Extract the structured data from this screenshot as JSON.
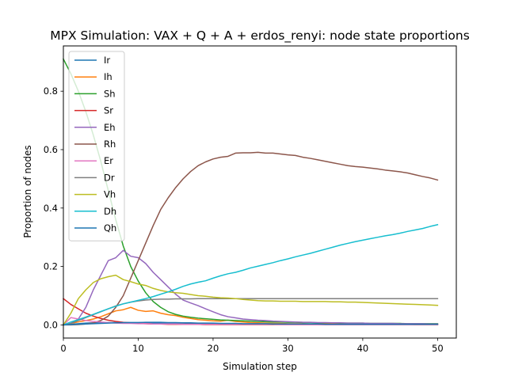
{
  "chart_data": {
    "type": "line",
    "title": "MPX Simulation: VAX + Q + A + erdos_renyi: node state proportions",
    "xlabel": "Simulation step",
    "ylabel": "Proportion of nodes",
    "xlim": [
      0,
      52.5
    ],
    "ylim": [
      -0.045,
      0.955
    ],
    "xticks": [
      0,
      10,
      20,
      30,
      40,
      50
    ],
    "xtick_labels": [
      "0",
      "10",
      "20",
      "30",
      "40",
      "50"
    ],
    "yticks": [
      0.0,
      0.2,
      0.4,
      0.6,
      0.8
    ],
    "ytick_labels": [
      "0.0",
      "0.2",
      "0.4",
      "0.6",
      "0.8"
    ],
    "grid": false,
    "legend_position": "upper-left",
    "x": [
      0,
      1,
      2,
      3,
      4,
      5,
      6,
      7,
      8,
      9,
      10,
      11,
      12,
      13,
      14,
      15,
      16,
      17,
      18,
      19,
      20,
      21,
      22,
      23,
      24,
      25,
      26,
      27,
      28,
      29,
      30,
      31,
      32,
      33,
      34,
      35,
      36,
      37,
      38,
      39,
      40,
      41,
      42,
      43,
      44,
      45,
      46,
      47,
      48,
      49,
      50
    ],
    "series": [
      {
        "name": "Ir",
        "color": "#1f77b4",
        "values": [
          0,
          0.002,
          0.004,
          0.006,
          0.007,
          0.008,
          0.008,
          0.008,
          0.008,
          0.008,
          0.008,
          0.008,
          0.007,
          0.007,
          0.006,
          0.006,
          0.006,
          0.005,
          0.005,
          0.005,
          0.004,
          0.004,
          0.004,
          0.004,
          0.003,
          0.003,
          0.003,
          0.003,
          0.003,
          0.003,
          0.003,
          0.003,
          0.003,
          0.003,
          0.002,
          0.002,
          0.002,
          0.002,
          0.002,
          0.002,
          0.002,
          0.002,
          0.002,
          0.002,
          0.002,
          0.002,
          0.002,
          0.002,
          0.002,
          0.002,
          0.002
        ]
      },
      {
        "name": "Ih",
        "color": "#ff7f0e",
        "values": [
          0,
          0.005,
          0.01,
          0.015,
          0.02,
          0.028,
          0.038,
          0.048,
          0.052,
          0.06,
          0.05,
          0.046,
          0.048,
          0.04,
          0.035,
          0.032,
          0.026,
          0.022,
          0.018,
          0.016,
          0.014,
          0.013,
          0.016,
          0.012,
          0.01,
          0.008,
          0.007,
          0.006,
          0.005,
          0.005,
          0.004,
          0.004,
          0.004,
          0.003,
          0.003,
          0.003,
          0.003,
          0.003,
          0.002,
          0.002,
          0.002,
          0.002,
          0.002,
          0.002,
          0.002,
          0.002,
          0.002,
          0.001,
          0.001,
          0.001,
          0.001
        ]
      },
      {
        "name": "Sh",
        "color": "#2ca02c",
        "values": [
          0.91,
          0.86,
          0.8,
          0.73,
          0.65,
          0.56,
          0.46,
          0.36,
          0.27,
          0.2,
          0.15,
          0.11,
          0.08,
          0.06,
          0.045,
          0.036,
          0.03,
          0.026,
          0.023,
          0.021,
          0.019,
          0.017,
          0.016,
          0.015,
          0.014,
          0.013,
          0.012,
          0.011,
          0.01,
          0.01,
          0.009,
          0.009,
          0.008,
          0.008,
          0.007,
          0.007,
          0.007,
          0.006,
          0.006,
          0.006,
          0.006,
          0.005,
          0.005,
          0.005,
          0.005,
          0.005,
          0.004,
          0.004,
          0.004,
          0.004,
          0.004
        ]
      },
      {
        "name": "Sr",
        "color": "#d62728",
        "values": [
          0.09,
          0.07,
          0.055,
          0.04,
          0.03,
          0.022,
          0.016,
          0.012,
          0.009,
          0.007,
          0.005,
          0.004,
          0.003,
          0.003,
          0.002,
          0.002,
          0.002,
          0.002,
          0.002,
          0.001,
          0.001,
          0.001,
          0.001,
          0.001,
          0.001,
          0.001,
          0.001,
          0.001,
          0.001,
          0.001,
          0.001,
          0.001,
          0.001,
          0.001,
          0.001,
          0.001,
          0.001,
          0.001,
          0.001,
          0.001,
          0.001,
          0.001,
          0.001,
          0.001,
          0.001,
          0.001,
          0.001,
          0.001,
          0.001,
          0.001,
          0.001
        ]
      },
      {
        "name": "Eh",
        "color": "#9467bd",
        "values": [
          0,
          0.005,
          0.02,
          0.06,
          0.12,
          0.17,
          0.22,
          0.23,
          0.255,
          0.235,
          0.23,
          0.21,
          0.18,
          0.155,
          0.13,
          0.105,
          0.085,
          0.075,
          0.066,
          0.055,
          0.045,
          0.035,
          0.028,
          0.024,
          0.02,
          0.018,
          0.016,
          0.015,
          0.013,
          0.012,
          0.011,
          0.01,
          0.009,
          0.009,
          0.008,
          0.008,
          0.007,
          0.007,
          0.006,
          0.006,
          0.006,
          0.005,
          0.005,
          0.005,
          0.005,
          0.004,
          0.004,
          0.004,
          0.004,
          0.003,
          0.003
        ]
      },
      {
        "name": "Rh",
        "color": "#8c564b",
        "values": [
          0,
          0,
          0.001,
          0.003,
          0.007,
          0.015,
          0.03,
          0.06,
          0.1,
          0.16,
          0.22,
          0.28,
          0.34,
          0.395,
          0.435,
          0.47,
          0.5,
          0.525,
          0.545,
          0.558,
          0.568,
          0.574,
          0.577,
          0.588,
          0.589,
          0.589,
          0.591,
          0.588,
          0.588,
          0.585,
          0.582,
          0.58,
          0.574,
          0.57,
          0.565,
          0.56,
          0.555,
          0.55,
          0.545,
          0.542,
          0.54,
          0.537,
          0.534,
          0.53,
          0.527,
          0.524,
          0.52,
          0.514,
          0.508,
          0.503,
          0.496
        ]
      },
      {
        "name": "Er",
        "color": "#e377c2",
        "values": [
          0,
          0.025,
          0.02,
          0.015,
          0.012,
          0.01,
          0.008,
          0.006,
          0.005,
          0.005,
          0.004,
          0.004,
          0.003,
          0.003,
          0.003,
          0.003,
          0.002,
          0.002,
          0.002,
          0.002,
          0.002,
          0.002,
          0.002,
          0.002,
          0.002,
          0.002,
          0.002,
          0.002,
          0.002,
          0.001,
          0.001,
          0.001,
          0.001,
          0.001,
          0.001,
          0.001,
          0.001,
          0.001,
          0.001,
          0.001,
          0.001,
          0.001,
          0.001,
          0.001,
          0.001,
          0.001,
          0.001,
          0.001,
          0.001,
          0.001,
          0.001
        ]
      },
      {
        "name": "Dr",
        "color": "#7f7f7f",
        "values": [
          0,
          0.005,
          0.015,
          0.025,
          0.035,
          0.045,
          0.055,
          0.065,
          0.072,
          0.078,
          0.082,
          0.085,
          0.087,
          0.088,
          0.088,
          0.089,
          0.089,
          0.089,
          0.09,
          0.09,
          0.09,
          0.09,
          0.09,
          0.09,
          0.09,
          0.09,
          0.09,
          0.09,
          0.09,
          0.09,
          0.09,
          0.09,
          0.09,
          0.09,
          0.09,
          0.09,
          0.09,
          0.09,
          0.09,
          0.09,
          0.09,
          0.09,
          0.09,
          0.09,
          0.09,
          0.09,
          0.09,
          0.09,
          0.09,
          0.09,
          0.09
        ]
      },
      {
        "name": "Vh",
        "color": "#bcbd22",
        "values": [
          0,
          0.04,
          0.09,
          0.12,
          0.145,
          0.158,
          0.165,
          0.17,
          0.155,
          0.148,
          0.14,
          0.135,
          0.125,
          0.118,
          0.113,
          0.11,
          0.108,
          0.104,
          0.1,
          0.098,
          0.095,
          0.093,
          0.092,
          0.09,
          0.087,
          0.085,
          0.083,
          0.082,
          0.082,
          0.081,
          0.081,
          0.081,
          0.08,
          0.08,
          0.08,
          0.08,
          0.079,
          0.079,
          0.078,
          0.078,
          0.077,
          0.076,
          0.075,
          0.074,
          0.073,
          0.072,
          0.071,
          0.07,
          0.069,
          0.068,
          0.067
        ]
      },
      {
        "name": "Dh",
        "color": "#17becf",
        "values": [
          0,
          0.01,
          0.018,
          0.027,
          0.036,
          0.046,
          0.055,
          0.064,
          0.072,
          0.078,
          0.084,
          0.09,
          0.097,
          0.105,
          0.113,
          0.122,
          0.132,
          0.14,
          0.146,
          0.151,
          0.16,
          0.168,
          0.175,
          0.18,
          0.187,
          0.195,
          0.201,
          0.207,
          0.213,
          0.22,
          0.226,
          0.233,
          0.239,
          0.245,
          0.252,
          0.259,
          0.266,
          0.273,
          0.279,
          0.285,
          0.29,
          0.295,
          0.3,
          0.305,
          0.309,
          0.314,
          0.32,
          0.325,
          0.33,
          0.337,
          0.343
        ]
      },
      {
        "name": "Qh",
        "color": "#1f77b4",
        "values": [
          0,
          0.001,
          0.002,
          0.003,
          0.004,
          0.005,
          0.006,
          0.007,
          0.008,
          0.008,
          0.008,
          0.009,
          0.009,
          0.009,
          0.008,
          0.008,
          0.007,
          0.007,
          0.006,
          0.006,
          0.006,
          0.005,
          0.005,
          0.005,
          0.004,
          0.004,
          0.004,
          0.004,
          0.003,
          0.003,
          0.003,
          0.003,
          0.003,
          0.003,
          0.003,
          0.002,
          0.002,
          0.002,
          0.002,
          0.002,
          0.002,
          0.002,
          0.002,
          0.002,
          0.002,
          0.002,
          0.002,
          0.002,
          0.002,
          0.002,
          0.002
        ]
      }
    ]
  }
}
